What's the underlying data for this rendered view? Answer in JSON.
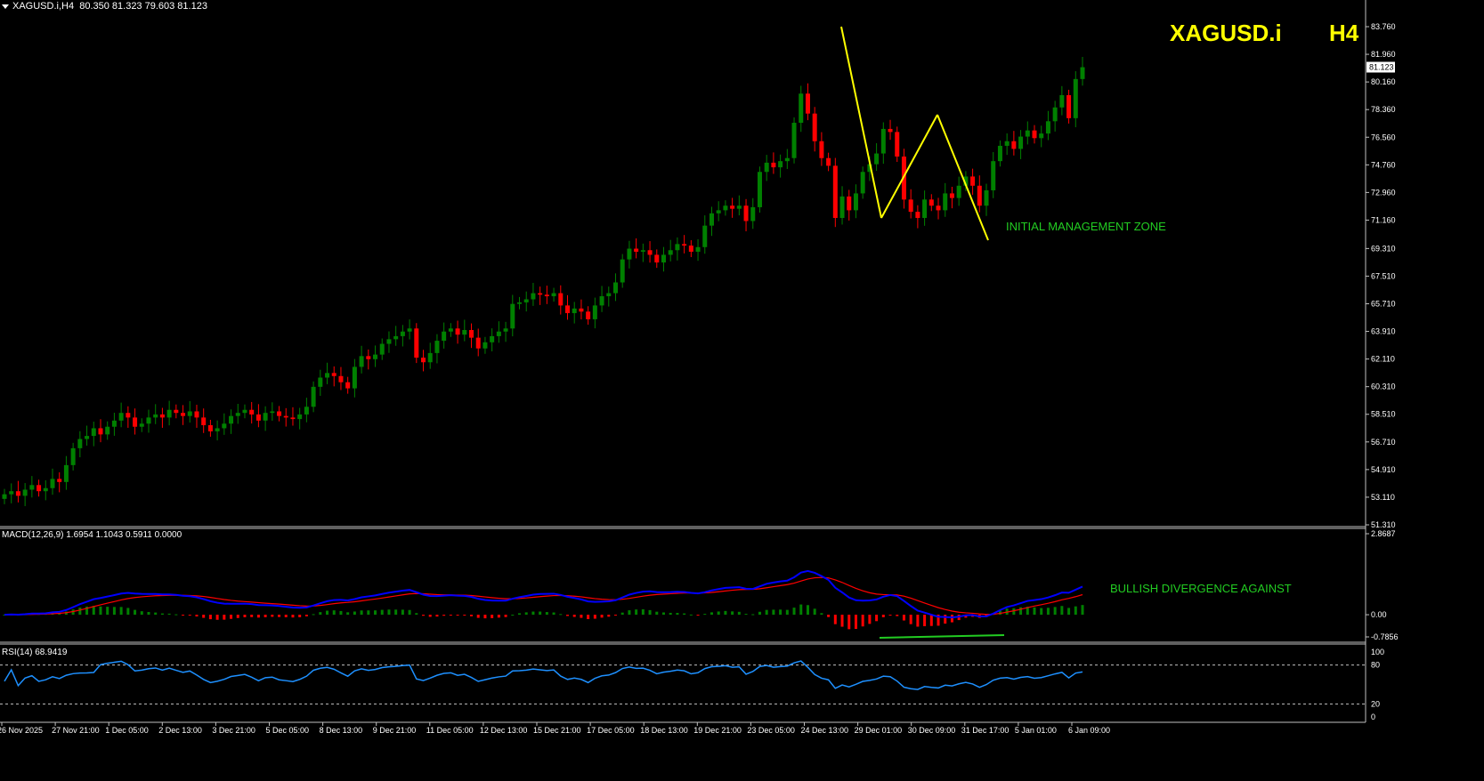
{
  "header": {
    "main_title": "XAGUSD.i,H4",
    "ohlc": "80.350 81.323 79.603 81.123",
    "symbol_big": "XAGUSD.i",
    "tf_big": "H4"
  },
  "annotations": {
    "zone_label": "INITIAL MANAGEMENT ZONE",
    "divergence_label": "BULLISH DIVERGENCE AGAINST"
  },
  "price_axis": {
    "ticks": [
      "83.760",
      "81.960",
      "80.160",
      "78.360",
      "76.560",
      "74.760",
      "72.960",
      "71.160",
      "69.310",
      "67.510",
      "65.710",
      "63.910",
      "62.110",
      "60.310",
      "58.510",
      "56.710",
      "54.910",
      "53.110",
      "51.310"
    ],
    "current_price": "81.123"
  },
  "macd": {
    "label": "MACD(12,26,9) 1.6954 1.1043 0.5911 0.0000",
    "ticks": [
      "2.8687",
      "0.00",
      "-0.7856"
    ]
  },
  "rsi": {
    "label": "RSI(14) 68.9419",
    "ticks": [
      "100",
      "80",
      "20",
      "0"
    ]
  },
  "time_axis": [
    "26 Nov 2025",
    "27 Nov 21:00",
    "1 Dec 05:00",
    "2 Dec 13:00",
    "3 Dec 21:00",
    "5 Dec 05:00",
    "8 Dec 13:00",
    "9 Dec 21:00",
    "11 Dec 05:00",
    "12 Dec 13:00",
    "15 Dec 21:00",
    "17 Dec 05:00",
    "18 Dec 13:00",
    "19 Dec 21:00",
    "23 Dec 05:00",
    "24 Dec 13:00",
    "29 Dec 01:00",
    "30 Dec 09:00",
    "31 Dec 17:00",
    "5 Jan 01:00",
    "6 Jan 09:00"
  ],
  "colors": {
    "bull": "#008000",
    "bear": "#ff0000",
    "macd_main": "#0000ff",
    "macd_signal": "#ff0000",
    "rsi": "#1e90ff",
    "pattern": "#ffff00",
    "divergence": "#22cc22",
    "grid": "#c0c0c0"
  },
  "chart_data": {
    "type": "candlestick",
    "price_range": [
      51.31,
      83.76
    ],
    "closes": [
      53.3,
      53.5,
      53.2,
      53.6,
      53.9,
      53.5,
      53.7,
      54.3,
      54.1,
      55.2,
      56.3,
      56.9,
      57.1,
      57.6,
      57.2,
      57.7,
      58.1,
      58.6,
      58.3,
      57.7,
      57.9,
      58.3,
      58.5,
      58.3,
      58.8,
      58.6,
      58.4,
      58.7,
      58.3,
      57.8,
      57.4,
      57.6,
      57.9,
      58.4,
      58.6,
      58.8,
      58.5,
      58.1,
      58.6,
      58.7,
      58.4,
      58.3,
      58.2,
      58.5,
      59.0,
      60.3,
      60.9,
      61.2,
      61.0,
      60.6,
      60.2,
      61.6,
      62.3,
      62.1,
      62.4,
      63.1,
      63.4,
      63.6,
      63.9,
      64.1,
      62.2,
      61.9,
      62.5,
      63.3,
      63.9,
      64.1,
      63.7,
      64.0,
      63.5,
      62.8,
      63.2,
      63.6,
      63.9,
      64.1,
      65.7,
      65.8,
      66.0,
      66.4,
      66.3,
      66.2,
      66.4,
      65.6,
      65.1,
      65.4,
      65.2,
      64.7,
      65.6,
      66.2,
      66.4,
      67.1,
      68.6,
      69.3,
      69.1,
      69.2,
      68.9,
      68.4,
      68.9,
      69.2,
      69.6,
      69.5,
      69.1,
      69.4,
      70.8,
      71.6,
      71.8,
      72.1,
      71.9,
      72.1,
      71.1,
      72.0,
      74.3,
      74.9,
      74.6,
      75.0,
      75.2,
      77.5,
      79.4,
      78.1,
      76.3,
      75.2,
      74.7,
      71.3,
      72.7,
      71.8,
      72.9,
      74.3,
      74.8,
      75.5,
      77.1,
      76.9,
      75.3,
      72.5,
      71.7,
      71.3,
      72.5,
      72.1,
      71.8,
      72.9,
      72.6,
      73.4,
      74.0,
      73.4,
      72.1,
      73.1,
      75.0,
      76.0,
      76.3,
      75.8,
      76.6,
      77.0,
      76.5,
      76.8,
      77.6,
      78.5,
      79.3,
      77.8,
      80.35,
      81.12
    ],
    "macd_range": [
      -0.7856,
      2.8687
    ],
    "rsi_range": [
      0,
      100
    ],
    "rsi_levels": [
      80,
      20
    ]
  }
}
